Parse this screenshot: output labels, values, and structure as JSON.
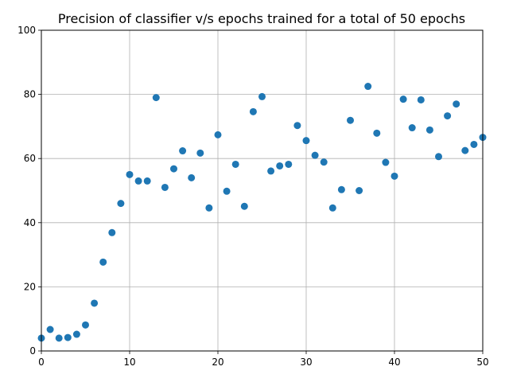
{
  "chart_data": {
    "type": "scatter",
    "title": "Precision of classifier v/s epochs trained for a total of 50 epochs",
    "xlabel": "",
    "ylabel": "",
    "xlim": [
      0,
      50
    ],
    "ylim": [
      0,
      100
    ],
    "xticks": [
      0,
      10,
      20,
      30,
      40,
      50
    ],
    "yticks": [
      0,
      20,
      40,
      60,
      80,
      100
    ],
    "grid": true,
    "marker_color": "#1f77b4",
    "series": [
      {
        "x": [
          0,
          1,
          2,
          3,
          4,
          5,
          6,
          7,
          8,
          9,
          10,
          11,
          12,
          13,
          14,
          15,
          16,
          17,
          18,
          19,
          20,
          21,
          22,
          23,
          24,
          25,
          26,
          27,
          28,
          29,
          30,
          31,
          32,
          33,
          34,
          35,
          36,
          37,
          38,
          39,
          40,
          41,
          42,
          43,
          44,
          45,
          46,
          47,
          48,
          49,
          50
        ],
        "y": [
          4.0,
          6.7,
          4.0,
          4.2,
          5.2,
          8.1,
          14.9,
          27.7,
          36.9,
          46.0,
          55.0,
          53.0,
          53.0,
          79.0,
          51.0,
          56.8,
          62.4,
          54.0,
          61.7,
          44.6,
          67.4,
          49.8,
          58.2,
          45.1,
          74.6,
          79.3,
          56.1,
          57.7,
          58.2,
          70.3,
          65.6,
          61.0,
          58.9,
          44.6,
          50.3,
          71.9,
          50.0,
          82.5,
          67.9,
          58.8,
          54.5,
          78.5,
          69.6,
          78.3,
          68.9,
          60.6,
          73.3,
          77.0,
          62.5,
          64.4,
          66.6
        ]
      }
    ]
  }
}
